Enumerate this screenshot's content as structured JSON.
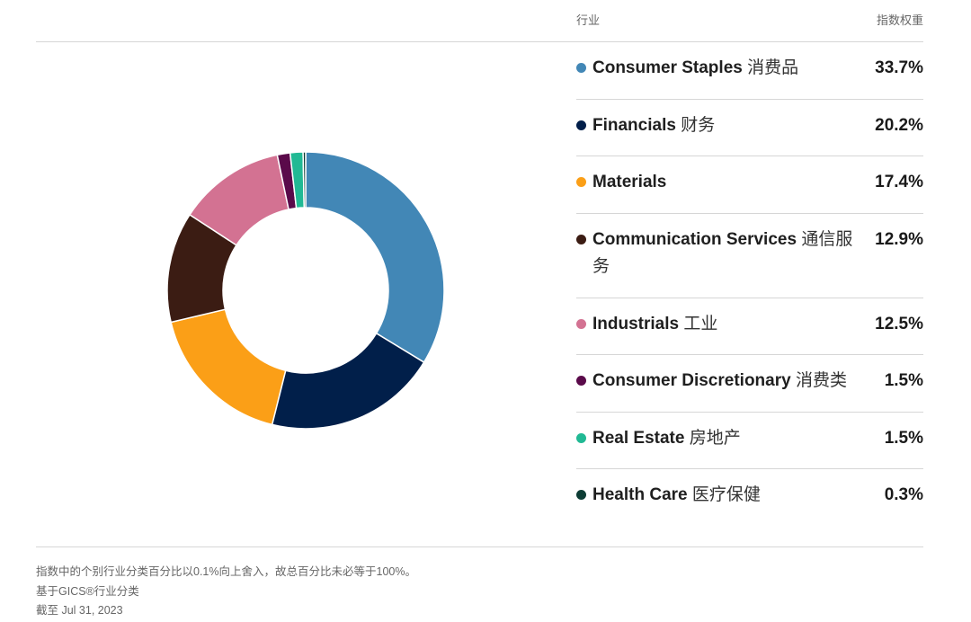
{
  "table_header": {
    "industry": "行业",
    "weight": "指数权重"
  },
  "chart_data": {
    "type": "pie",
    "donut": true,
    "categories": [
      "Consumer Staples 消费品",
      "Financials 财务",
      "Materials",
      "Communication Services 通信服务",
      "Industrials 工业",
      "Consumer Discretionary 消费类",
      "Real Estate 房地产",
      "Health Care 医疗保健"
    ],
    "values": [
      33.7,
      20.2,
      17.4,
      12.9,
      12.5,
      1.5,
      1.5,
      0.3
    ],
    "colors": [
      "#4287b6",
      "#011f4a",
      "#fb9f17",
      "#3b1c13",
      "#d37292",
      "#5a0a4a",
      "#21b994",
      "#0d3d35"
    ],
    "legend_placement": "right"
  },
  "rows": [
    {
      "en": "Consumer Staples",
      "cn": "消费品",
      "value": "33.7%",
      "color": "#4287b6"
    },
    {
      "en": "Financials",
      "cn": "财务",
      "value": "20.2%",
      "color": "#011f4a"
    },
    {
      "en": "Materials",
      "cn": "",
      "value": "17.4%",
      "color": "#fb9f17"
    },
    {
      "en": "Communication Services",
      "cn": "通信服务",
      "value": "12.9%",
      "color": "#3b1c13"
    },
    {
      "en": "Industrials",
      "cn": "工业",
      "value": "12.5%",
      "color": "#d37292"
    },
    {
      "en": "Consumer Discretionary",
      "cn": "消费类",
      "value": "1.5%",
      "color": "#5a0a4a"
    },
    {
      "en": "Real Estate",
      "cn": "房地产",
      "value": "1.5%",
      "color": "#21b994"
    },
    {
      "en": "Health Care",
      "cn": "医疗保健",
      "value": "0.3%",
      "color": "#0d3d35"
    }
  ],
  "notes": {
    "rounding": "指数中的个别行业分类百分比以0.1%向上舍入，故总百分比未必等于100%。",
    "basis": "基于GICS®行业分类",
    "as_of": "截至 Jul 31, 2023"
  }
}
